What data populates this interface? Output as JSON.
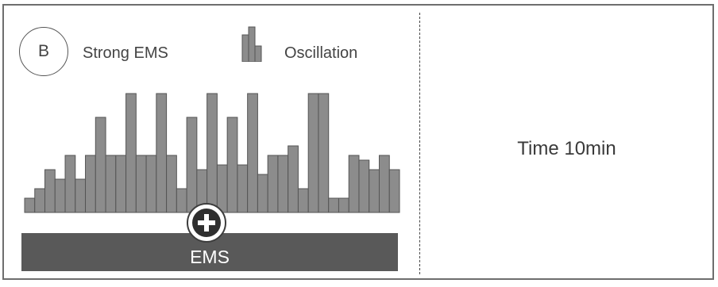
{
  "panel": {
    "mode_letter": "B",
    "mode_name": "Strong EMS",
    "legend_label": "Oscillation",
    "bar_label": "EMS",
    "time_label": "Time 10min"
  },
  "colors": {
    "bar_fill": "#8c8c8c",
    "bar_stroke": "#555555",
    "ems_bar": "#595959",
    "frame": "#6e6e6e"
  },
  "icons": {
    "plus": "plus-circle-icon",
    "oscillation": "bar-cluster-icon"
  },
  "chart_data": {
    "type": "bar",
    "ylim": [
      0,
      150
    ],
    "values": [
      15,
      25,
      45,
      35,
      60,
      35,
      60,
      100,
      60,
      60,
      125,
      60,
      60,
      125,
      60,
      25,
      100,
      45,
      125,
      50,
      100,
      50,
      125,
      40,
      60,
      60,
      70,
      25,
      125,
      125,
      15,
      15,
      60,
      55,
      45,
      60,
      45
    ]
  }
}
